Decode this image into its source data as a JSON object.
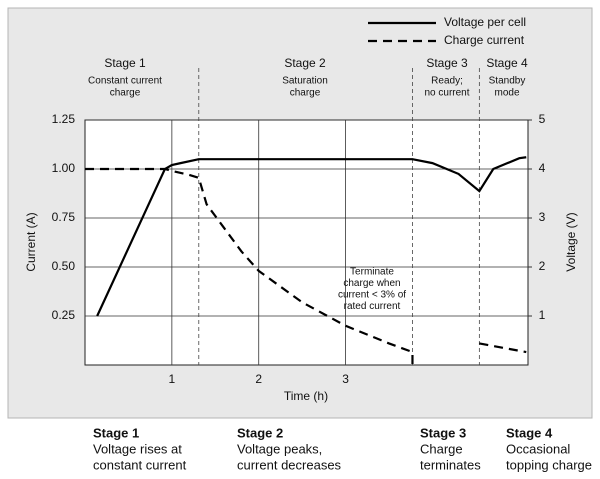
{
  "chart_data": {
    "type": "line",
    "legend": "top-right",
    "grid": true,
    "x_label": "Time (h)",
    "y_label": "Current (A)",
    "y2_label": "Voltage (V)",
    "xlim": [
      0,
      5.1
    ],
    "xticks": [
      1,
      2,
      3
    ],
    "ylim": [
      0,
      1.25
    ],
    "yticks": [
      0.25,
      {
        "value": 0.5,
        "label": "0.50"
      },
      0.75,
      {
        "value": 1.0,
        "label": "1.00"
      },
      1.25
    ],
    "y2lim": [
      0,
      5
    ],
    "y2ticks": [
      1,
      2,
      3,
      4,
      5
    ],
    "stage_boundaries": [
      1.31,
      3.77,
      4.54
    ],
    "stages": [
      {
        "title": "Stage 1",
        "lines": [
          "Constant current",
          "charge"
        ]
      },
      {
        "title": "Stage 2",
        "lines": [
          "Saturation",
          "charge"
        ]
      },
      {
        "title": "Stage 3",
        "lines": [
          "Ready;",
          "no current"
        ]
      },
      {
        "title": "Stage 4",
        "lines": [
          "Standby",
          "mode"
        ]
      }
    ],
    "annotation": [
      "Terminate",
      "charge when",
      "current < 3% of",
      "rated current"
    ],
    "series": [
      {
        "name": "Voltage per cell",
        "color": "#000000",
        "dash": "solid",
        "axis": "y2",
        "x": [
          0.14,
          0.92,
          1.0,
          1.1,
          1.31,
          2.0,
          3.0,
          3.77,
          4.0,
          4.3,
          4.54,
          4.7,
          5.0,
          5.08
        ],
        "values": [
          1.0,
          4.0,
          4.08,
          4.12,
          4.2,
          4.2,
          4.2,
          4.2,
          4.12,
          3.9,
          3.55,
          4.0,
          4.22,
          4.24
        ]
      },
      {
        "name": "Charge current",
        "color": "#000000",
        "dash": "dashed",
        "x": [
          0,
          0.92,
          1.0,
          1.2,
          1.31,
          1.4,
          1.6,
          1.8,
          2.0,
          2.5,
          3.0,
          3.5,
          3.77,
          3.77,
          4.2,
          4.54,
          5.08
        ],
        "values": [
          1.0,
          1.0,
          0.99,
          0.97,
          0.955,
          0.82,
          0.7,
          0.58,
          0.48,
          0.32,
          0.2,
          0.11,
          0.066,
          0,
          null,
          0.11,
          0.066
        ]
      }
    ],
    "captions": [
      {
        "title": "Stage 1",
        "lines": [
          "Voltage rises at",
          "constant current"
        ]
      },
      {
        "title": "Stage 2",
        "lines": [
          "Voltage peaks,",
          "current decreases"
        ]
      },
      {
        "title": "Stage 3",
        "lines": [
          "Charge",
          "terminates"
        ]
      },
      {
        "title": "Stage 4",
        "lines": [
          "Occasional",
          "topping charge"
        ]
      }
    ]
  }
}
